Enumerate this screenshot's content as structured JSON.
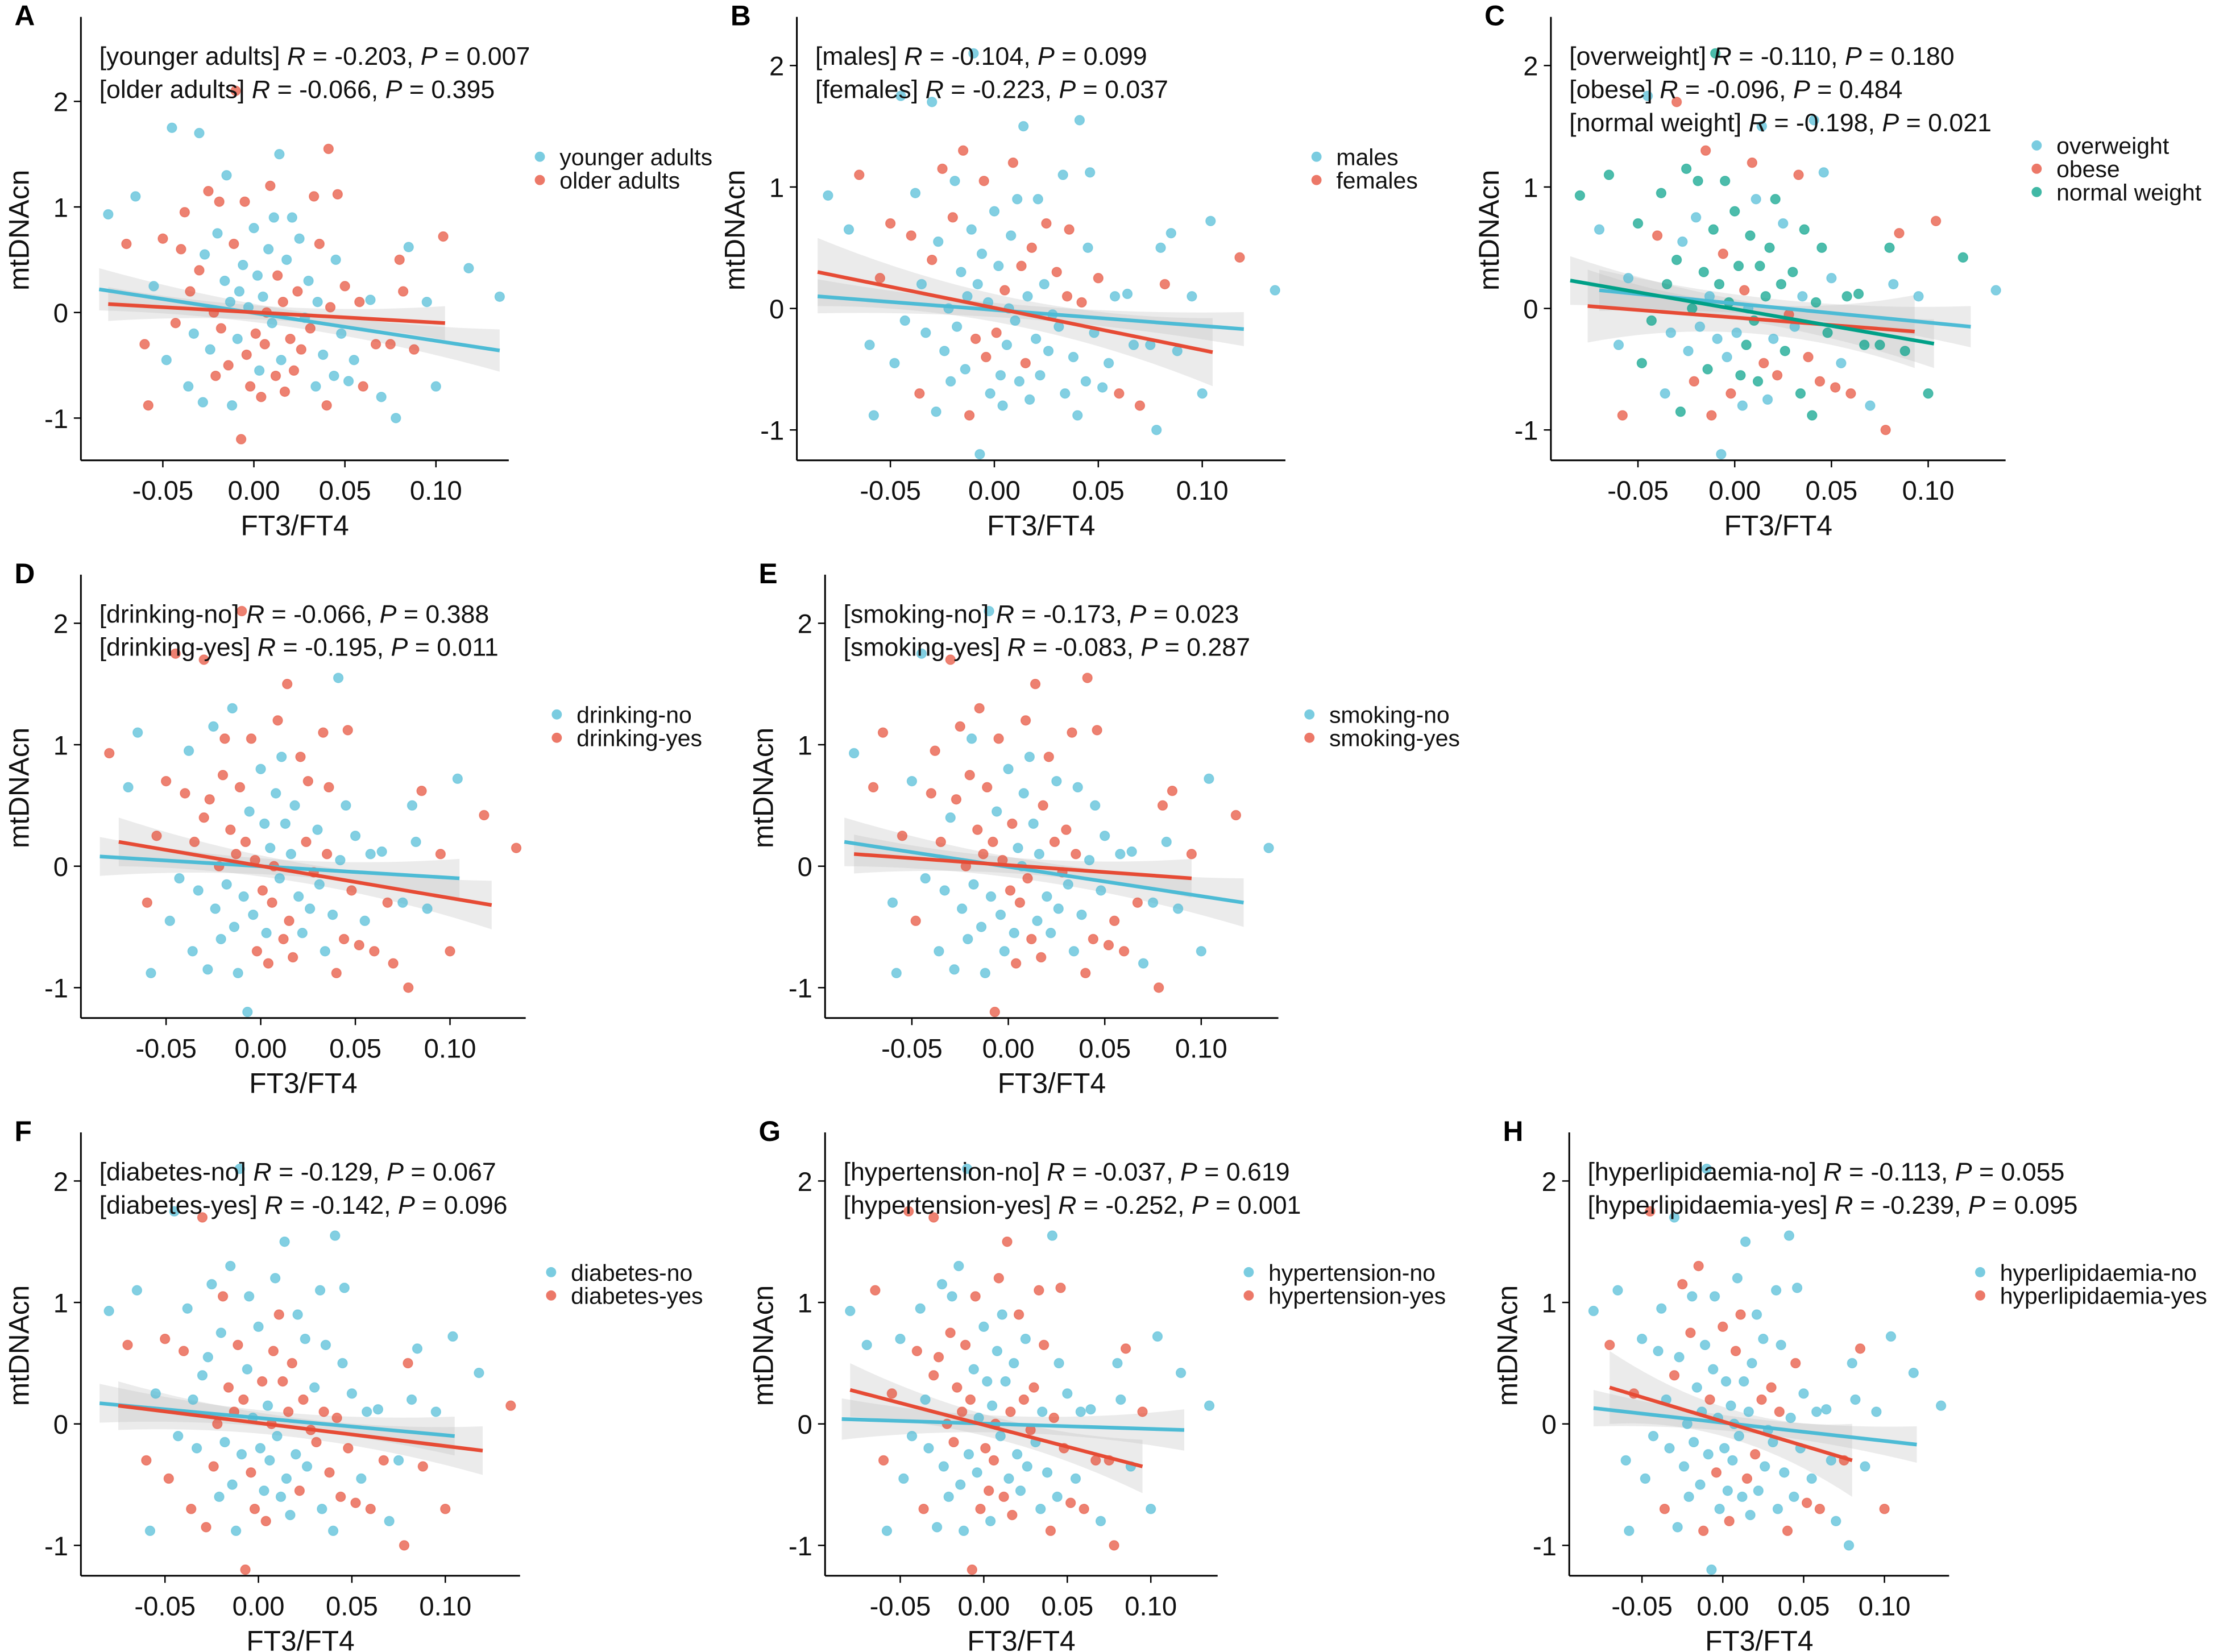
{
  "colors": {
    "blue": "#4DBBD5",
    "red": "#E64B35",
    "green": "#00A087",
    "band": "#bdbdbd"
  },
  "chart_data": {
    "type": "scatter",
    "xlabel": "FT3/FT4",
    "ylabel": "mtDNAcn",
    "xticks": [
      -0.05,
      0.0,
      0.05,
      0.1
    ],
    "xtick_labels": [
      "-0.05",
      "0.00",
      "0.05",
      "0.10"
    ],
    "yticks": [
      -1,
      0,
      1,
      2
    ],
    "ytick_labels": [
      "-1",
      "0",
      "1",
      "2"
    ],
    "xlim": [
      -0.095,
      0.14
    ],
    "points": [
      [
        -0.08,
        0.93
      ],
      [
        -0.07,
        0.65
      ],
      [
        -0.065,
        1.1
      ],
      [
        -0.06,
        -0.3
      ],
      [
        -0.058,
        -0.88
      ],
      [
        -0.055,
        0.25
      ],
      [
        -0.05,
        0.7
      ],
      [
        -0.048,
        -0.45
      ],
      [
        -0.045,
        1.75
      ],
      [
        -0.043,
        -0.1
      ],
      [
        -0.04,
        0.6
      ],
      [
        -0.038,
        0.95
      ],
      [
        -0.036,
        -0.7
      ],
      [
        -0.035,
        0.2
      ],
      [
        -0.033,
        -0.2
      ],
      [
        -0.03,
        1.7
      ],
      [
        -0.03,
        0.4
      ],
      [
        -0.028,
        -0.85
      ],
      [
        -0.027,
        0.55
      ],
      [
        -0.025,
        1.15
      ],
      [
        -0.024,
        -0.35
      ],
      [
        -0.022,
        0.0
      ],
      [
        -0.021,
        -0.6
      ],
      [
        -0.02,
        0.75
      ],
      [
        -0.019,
        1.05
      ],
      [
        -0.018,
        -0.15
      ],
      [
        -0.016,
        0.3
      ],
      [
        -0.015,
        1.3
      ],
      [
        -0.014,
        -0.5
      ],
      [
        -0.013,
        0.1
      ],
      [
        -0.012,
        -0.88
      ],
      [
        -0.011,
        0.65
      ],
      [
        -0.01,
        2.1
      ],
      [
        -0.009,
        -0.25
      ],
      [
        -0.008,
        0.2
      ],
      [
        -0.007,
        -1.2
      ],
      [
        -0.006,
        0.45
      ],
      [
        -0.005,
        1.05
      ],
      [
        -0.004,
        -0.4
      ],
      [
        -0.003,
        0.05
      ],
      [
        -0.002,
        -0.7
      ],
      [
        0.0,
        0.8
      ],
      [
        0.001,
        -0.2
      ],
      [
        0.002,
        0.35
      ],
      [
        0.003,
        -0.55
      ],
      [
        0.004,
        -0.8
      ],
      [
        0.005,
        0.15
      ],
      [
        0.006,
        -0.3
      ],
      [
        0.007,
        0.0
      ],
      [
        0.008,
        0.6
      ],
      [
        0.009,
        1.2
      ],
      [
        0.01,
        -0.1
      ],
      [
        0.011,
        0.9
      ],
      [
        0.012,
        -0.6
      ],
      [
        0.013,
        0.35
      ],
      [
        0.014,
        1.5
      ],
      [
        0.015,
        -0.45
      ],
      [
        0.016,
        0.1
      ],
      [
        0.017,
        -0.75
      ],
      [
        0.018,
        0.5
      ],
      [
        0.02,
        -0.25
      ],
      [
        0.021,
        0.9
      ],
      [
        0.022,
        -0.55
      ],
      [
        0.024,
        0.2
      ],
      [
        0.025,
        0.7
      ],
      [
        0.026,
        -0.35
      ],
      [
        0.028,
        -0.05
      ],
      [
        0.03,
        0.3
      ],
      [
        0.031,
        -0.15
      ],
      [
        0.033,
        1.1
      ],
      [
        0.034,
        -0.7
      ],
      [
        0.035,
        0.1
      ],
      [
        0.036,
        0.65
      ],
      [
        0.038,
        -0.4
      ],
      [
        0.04,
        -0.88
      ],
      [
        0.041,
        1.55
      ],
      [
        0.042,
        0.05
      ],
      [
        0.044,
        -0.6
      ],
      [
        0.045,
        0.5
      ],
      [
        0.046,
        1.12
      ],
      [
        0.048,
        -0.2
      ],
      [
        0.05,
        0.25
      ],
      [
        0.052,
        -0.65
      ],
      [
        0.055,
        -0.45
      ],
      [
        0.058,
        0.1
      ],
      [
        0.06,
        -0.7
      ],
      [
        0.064,
        0.12
      ],
      [
        0.067,
        -0.3
      ],
      [
        0.07,
        -0.8
      ],
      [
        0.075,
        -0.3
      ],
      [
        0.078,
        -1.0
      ],
      [
        0.08,
        0.5
      ],
      [
        0.082,
        0.2
      ],
      [
        0.085,
        0.62
      ],
      [
        0.088,
        -0.35
      ],
      [
        0.095,
        0.1
      ],
      [
        0.1,
        -0.7
      ],
      [
        0.104,
        0.72
      ],
      [
        0.118,
        0.42
      ],
      [
        0.135,
        0.15
      ]
    ],
    "panels": [
      {
        "label": "A",
        "ylim": [
          -1.4,
          2.8
        ],
        "groups": "0101101001110100100101101100100110010110101001011010011001101011010011001011100101001101010110100100",
        "series": [
          {
            "name": "younger adults",
            "color": "blue",
            "R": "-0.203",
            "P": "0.007",
            "fit": [
              -0.085,
              0.22,
              0.135,
              -0.36
            ],
            "ci": 0.2
          },
          {
            "name": "older adults",
            "color": "red",
            "R": "-0.066",
            "P": "0.395",
            "fit": [
              -0.08,
              0.08,
              0.105,
              -0.1
            ],
            "ci": 0.16
          }
        ]
      },
      {
        "label": "B",
        "ylim": [
          -1.25,
          2.4
        ],
        "groups": "0010011000101000100100010001001001000110001000100010001010010000100100011000100001000100100010000010",
        "series": [
          {
            "name": "males",
            "color": "blue",
            "R": "-0.104",
            "P": "0.099",
            "fit": [
              -0.085,
              0.1,
              0.12,
              -0.17
            ],
            "ci": 0.14
          },
          {
            "name": "females",
            "color": "red",
            "R": "-0.223",
            "P": "0.037",
            "fit": [
              -0.085,
              0.3,
              0.105,
              -0.36
            ],
            "ci": 0.28
          }
        ]
      },
      {
        "label": "C",
        "ylim": [
          -1.25,
          2.4
        ],
        "groups": "2020102202120201220202102021201220201202120220120212022012020212021201202120212020102122021201202120",
        "series": [
          {
            "name": "overweight",
            "color": "blue",
            "R": "-0.110",
            "P": "0.180",
            "fit": [
              -0.07,
              0.15,
              0.122,
              -0.15
            ],
            "ci": 0.17
          },
          {
            "name": "obese",
            "color": "red",
            "R": "-0.096",
            "P": "0.484",
            "fit": [
              -0.076,
              0.02,
              0.093,
              -0.19
            ],
            "ci": 0.3
          },
          {
            "name": "normal weight",
            "color": "green",
            "R": "-0.198",
            "P": "0.021",
            "fit": [
              -0.085,
              0.23,
              0.103,
              -0.29
            ],
            "ci": 0.2
          }
        ]
      },
      {
        "label": "D",
        "ylim": [
          -1.25,
          2.4
        ],
        "groups": "1001011010100101101001011010010110100101101001011010010110100101101001011010010110100101101001011011",
        "series": [
          {
            "name": "drinking-no",
            "color": "blue",
            "R": "-0.066",
            "P": "0.388",
            "fit": [
              -0.085,
              0.08,
              0.105,
              -0.1
            ],
            "ci": 0.16
          },
          {
            "name": "drinking-yes",
            "color": "red",
            "R": "-0.195",
            "P": "0.011",
            "fit": [
              -0.075,
              0.2,
              0.122,
              -0.32
            ],
            "ci": 0.2
          }
        ]
      },
      {
        "label": "E",
        "ylim": [
          -1.25,
          2.4
        ],
        "groups": "0110010100110101001101010011010100110101001101010011010100110101001101010011010100110101001101010010",
        "series": [
          {
            "name": "smoking-no",
            "color": "blue",
            "R": "-0.173",
            "P": "0.023",
            "fit": [
              -0.085,
              0.2,
              0.122,
              -0.3
            ],
            "ci": 0.2
          },
          {
            "name": "smoking-yes",
            "color": "red",
            "R": "-0.083",
            "P": "0.287",
            "fit": [
              -0.08,
              0.1,
              0.095,
              -0.1
            ],
            "ci": 0.16
          }
        ]
      },
      {
        "label": "F",
        "ylim": [
          -1.25,
          2.4
        ],
        "groups": "0101001100101001010011001010010100110010100101001100101001010011001010010100110010100101001100101001",
        "series": [
          {
            "name": "diabetes-no",
            "color": "blue",
            "R": "-0.129",
            "P": "0.067",
            "fit": [
              -0.085,
              0.17,
              0.105,
              -0.1
            ],
            "ci": 0.16
          },
          {
            "name": "diabetes-yes",
            "color": "red",
            "R": "-0.142",
            "P": "0.096",
            "fit": [
              -0.075,
              0.15,
              0.12,
              -0.22
            ],
            "ci": 0.2
          }
        ]
      },
      {
        "label": "G",
        "ylim": [
          -1.25,
          2.4
        ],
        "groups": "0011010010101001101001010110010100110100101010011010010101100101001101001010100110100101011001010000",
        "series": [
          {
            "name": "hypertension-no",
            "color": "blue",
            "R": "-0.037",
            "P": "0.619",
            "fit": [
              -0.085,
              0.04,
              0.12,
              -0.05
            ],
            "ci": 0.17
          },
          {
            "name": "hypertension-yes",
            "color": "red",
            "R": "-0.252",
            "P": "0.001",
            "fit": [
              -0.08,
              0.28,
              0.095,
              -0.35
            ],
            "ci": 0.22
          }
        ]
      },
      {
        "label": "H",
        "ylim": [
          -1.25,
          2.4
        ],
        "groups": "0100010010001000100100010001001000100010010001000100100010001001000100010010001000100100010001001000",
        "series": [
          {
            "name": "hyperlipidaemia-no",
            "color": "blue",
            "R": "-0.113",
            "P": "0.055",
            "fit": [
              -0.08,
              0.13,
              0.12,
              -0.17
            ],
            "ci": 0.15
          },
          {
            "name": "hyperlipidaemia-yes",
            "color": "red",
            "R": "-0.239",
            "P": "0.095",
            "fit": [
              -0.07,
              0.3,
              0.08,
              -0.3
            ],
            "ci": 0.3
          }
        ]
      }
    ]
  }
}
